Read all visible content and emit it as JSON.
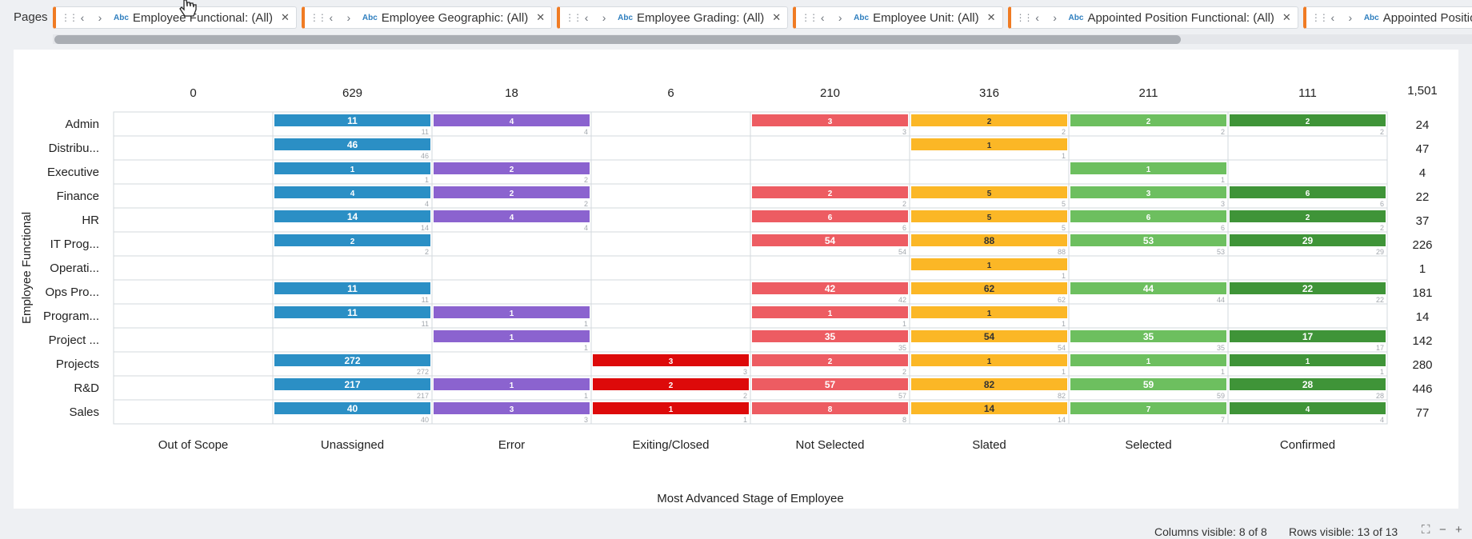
{
  "pages": {
    "label": "Pages",
    "chips": [
      {
        "label": "Employee Functional: (All)"
      },
      {
        "label": "Employee Geographic: (All)"
      },
      {
        "label": "Employee Grading: (All)"
      },
      {
        "label": "Employee Unit: (All)"
      },
      {
        "label": "Appointed Position Functional: (All)"
      },
      {
        "label": "Appointed Position Geog"
      }
    ],
    "abc_text": "Abc",
    "accent_color": "#f07b23"
  },
  "chart_data": {
    "type": "bar",
    "xlabel": "Most Advanced Stage of Employee",
    "ylabel": "Employee Functional",
    "columns": [
      "Out of Scope",
      "Unassigned",
      "Error",
      "Exiting/Closed",
      "Not Selected",
      "Slated",
      "Selected",
      "Confirmed"
    ],
    "column_totals": [
      "0",
      "629",
      "18",
      "6",
      "210",
      "316",
      "211",
      "111"
    ],
    "grand_total": "1,501",
    "column_colors": [
      "#2b8fc5",
      "#2b8fc5",
      "#8b63cf",
      "#dd0a0a",
      "#ed5c62",
      "#fbb726",
      "#6dbf5f",
      "#3f9438"
    ],
    "rows": [
      {
        "label": "Admin",
        "total": "24",
        "values": [
          null,
          11,
          4,
          null,
          3,
          2,
          2,
          2
        ]
      },
      {
        "label": "Distribu...",
        "total": "47",
        "values": [
          null,
          46,
          null,
          null,
          null,
          1,
          null,
          null
        ]
      },
      {
        "label": "Executive",
        "total": "4",
        "values": [
          null,
          1,
          2,
          null,
          null,
          null,
          1,
          null
        ]
      },
      {
        "label": "Finance",
        "total": "22",
        "values": [
          null,
          4,
          2,
          null,
          2,
          5,
          3,
          6
        ]
      },
      {
        "label": "HR",
        "total": "37",
        "values": [
          null,
          14,
          4,
          null,
          6,
          5,
          6,
          2
        ]
      },
      {
        "label": "IT Prog...",
        "total": "226",
        "values": [
          null,
          2,
          null,
          null,
          54,
          88,
          53,
          29
        ]
      },
      {
        "label": "Operati...",
        "total": "1",
        "values": [
          null,
          null,
          null,
          null,
          null,
          1,
          null,
          null
        ]
      },
      {
        "label": "Ops Pro...",
        "total": "181",
        "values": [
          null,
          11,
          null,
          null,
          42,
          62,
          44,
          22
        ]
      },
      {
        "label": "Program...",
        "total": "14",
        "values": [
          null,
          11,
          1,
          null,
          1,
          1,
          null,
          null
        ]
      },
      {
        "label": "Project ...",
        "total": "142",
        "values": [
          null,
          null,
          1,
          null,
          35,
          54,
          35,
          17
        ]
      },
      {
        "label": "Projects",
        "total": "280",
        "values": [
          null,
          272,
          null,
          3,
          2,
          1,
          1,
          1
        ]
      },
      {
        "label": "R&D",
        "total": "446",
        "values": [
          null,
          217,
          1,
          2,
          57,
          82,
          59,
          28
        ]
      },
      {
        "label": "Sales",
        "total": "77",
        "values": [
          null,
          40,
          3,
          1,
          8,
          14,
          7,
          4
        ]
      }
    ]
  },
  "footer": {
    "columns_visible": "Columns visible: 8 of 8",
    "rows_visible": "Rows visible: 13 of 13",
    "icons": [
      "expand-icon",
      "zoom-out-icon",
      "zoom-in-icon"
    ]
  }
}
